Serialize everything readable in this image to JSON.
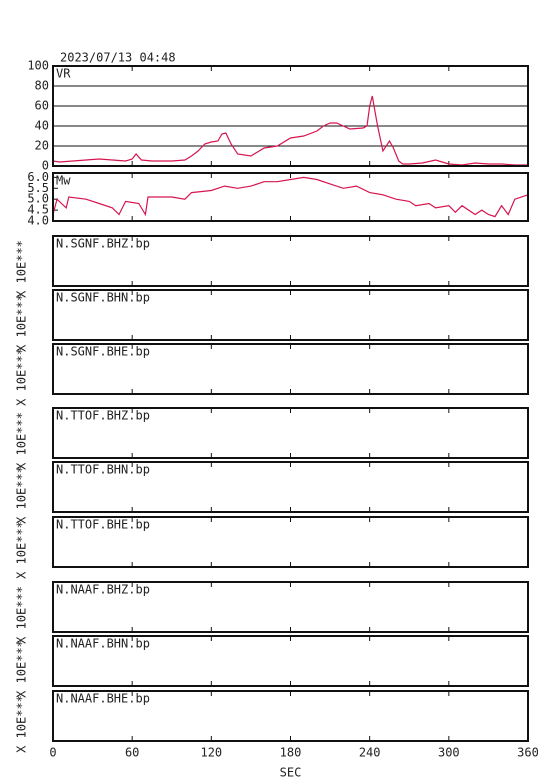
{
  "chart_data": [
    {
      "type": "line",
      "title": "2023/07/13 04:48",
      "label": "VR",
      "x": [
        0,
        5,
        15,
        25,
        35,
        45,
        55,
        60,
        63,
        67,
        75,
        90,
        100,
        105,
        110,
        115,
        120,
        125,
        128,
        131,
        135,
        140,
        150,
        155,
        160,
        170,
        180,
        190,
        200,
        205,
        210,
        215,
        220,
        225,
        235,
        238,
        240,
        242,
        244,
        246,
        250,
        255,
        258,
        262,
        265,
        270,
        280,
        290,
        300,
        310,
        320,
        330,
        340,
        350,
        360
      ],
      "values": [
        5,
        4,
        5,
        6,
        7,
        6,
        5,
        7,
        12,
        6,
        5,
        5,
        6,
        10,
        15,
        22,
        24,
        25,
        32,
        33,
        22,
        12,
        10,
        14,
        18,
        20,
        28,
        30,
        35,
        40,
        43,
        43,
        40,
        37,
        38,
        40,
        60,
        70,
        55,
        40,
        15,
        25,
        18,
        5,
        2,
        2,
        3,
        6,
        2,
        1,
        3,
        2,
        2,
        1,
        1
      ],
      "color": "#d6154f",
      "xlim": [
        0,
        360
      ],
      "ylim": [
        0,
        100
      ],
      "yticks": [
        0,
        20,
        40,
        60,
        80,
        100
      ],
      "grid": true
    },
    {
      "type": "line",
      "label": "Mw",
      "x": [
        0,
        3,
        10,
        12,
        25,
        35,
        45,
        50,
        55,
        65,
        70,
        72,
        90,
        100,
        105,
        120,
        130,
        140,
        150,
        160,
        170,
        180,
        190,
        200,
        210,
        220,
        230,
        240,
        250,
        260,
        270,
        275,
        285,
        290,
        300,
        305,
        310,
        320,
        325,
        330,
        335,
        340,
        345,
        350,
        360
      ],
      "values": [
        4.3,
        5.0,
        4.6,
        5.1,
        5.0,
        4.8,
        4.6,
        4.3,
        4.9,
        4.8,
        4.3,
        5.1,
        5.1,
        5.0,
        5.3,
        5.4,
        5.6,
        5.5,
        5.6,
        5.8,
        5.8,
        5.9,
        6.0,
        5.9,
        5.7,
        5.5,
        5.6,
        5.3,
        5.2,
        5.0,
        4.9,
        4.7,
        4.8,
        4.6,
        4.7,
        4.4,
        4.7,
        4.3,
        4.5,
        4.3,
        4.2,
        4.7,
        4.3,
        5.0,
        5.2
      ],
      "color": "#d6154f",
      "xlim": [
        0,
        360
      ],
      "ylim": [
        4.0,
        6.2
      ],
      "yticks": [
        {
          "value": 4,
          "label": "4.0"
        },
        4.5,
        {
          "value": 5,
          "label": "5.0"
        },
        5.5,
        {
          "value": 6,
          "label": "6.0"
        }
      ]
    },
    {
      "type": "trace",
      "label": "N.SGNF.BHZ.bp",
      "ylabel": "X 10E***",
      "xlim": [
        0,
        360
      ]
    },
    {
      "type": "trace",
      "label": "N.SGNF.BHN.bp",
      "ylabel": "X 10E***",
      "xlim": [
        0,
        360
      ]
    },
    {
      "type": "trace",
      "label": "N.SGNF.BHE.bp",
      "ylabel": "X 10E***",
      "xlim": [
        0,
        360
      ]
    },
    {
      "type": "trace",
      "label": "N.TTOF.BHZ.bp",
      "ylabel": "X 10E***",
      "xlim": [
        0,
        360
      ]
    },
    {
      "type": "trace",
      "label": "N.TTOF.BHN.bp",
      "ylabel": "X 10E***",
      "xlim": [
        0,
        360
      ]
    },
    {
      "type": "trace",
      "label": "N.TTOF.BHE.bp",
      "ylabel": "X 10E***",
      "xlim": [
        0,
        360
      ]
    },
    {
      "type": "trace",
      "label": "N.NAAF.BHZ.bp",
      "ylabel": "X 10E***",
      "xlim": [
        0,
        360
      ]
    },
    {
      "type": "trace",
      "label": "N.NAAF.BHN.bp",
      "ylabel": "X 10E***",
      "xlim": [
        0,
        360
      ]
    },
    {
      "type": "trace",
      "label": "N.NAAF.BHE.bp",
      "ylabel": "X 10E***",
      "xlim": [
        0,
        360
      ],
      "xticks": [
        0,
        60,
        120,
        180,
        240,
        300,
        360
      ],
      "xlabel": "SEC"
    }
  ]
}
